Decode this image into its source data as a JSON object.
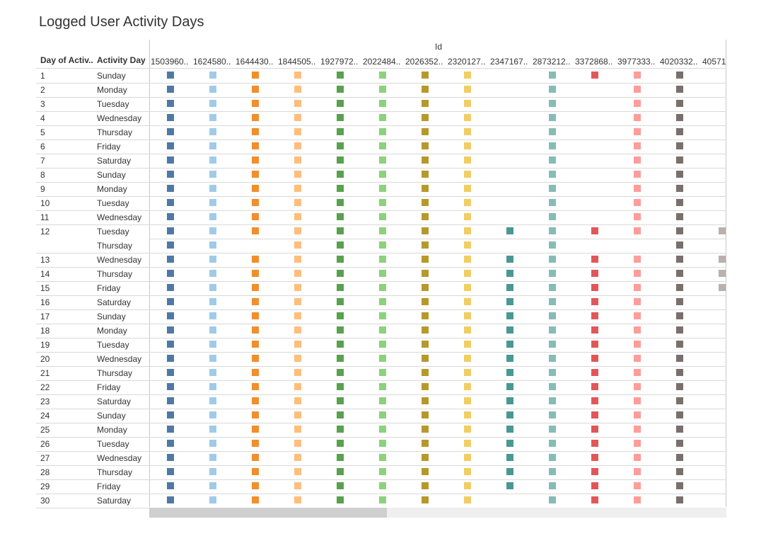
{
  "title": "Logged User Activity Days",
  "header": {
    "id_label": "Id",
    "col1": "Day of Activ..",
    "col2": "Activity Day"
  },
  "chart_data": {
    "type": "table",
    "title": "Logged User Activity Days",
    "column_group": "Id",
    "row_headers": [
      "Day of Activ..",
      "Activity Day"
    ],
    "ids": [
      "1503960..",
      "1624580..",
      "1644430..",
      "1844505..",
      "1927972..",
      "2022484..",
      "2026352..",
      "2320127..",
      "2347167..",
      "2873212..",
      "3372868..",
      "3977333..",
      "4020332..",
      "40571"
    ],
    "colors": [
      "#4e79a7",
      "#a0cbe8",
      "#f28e2b",
      "#ffbe7d",
      "#59a14f",
      "#8cd17d",
      "#b6992d",
      "#f1ce63",
      "#499894",
      "#86bcb6",
      "#e15759",
      "#ff9d9a",
      "#79706e",
      "#bab0ac"
    ],
    "rows": [
      {
        "day": "1",
        "activity": "Sunday",
        "present": [
          0,
          1,
          2,
          3,
          4,
          5,
          6,
          7,
          9,
          10,
          11,
          12
        ]
      },
      {
        "day": "2",
        "activity": "Monday",
        "present": [
          0,
          1,
          2,
          3,
          4,
          5,
          6,
          7,
          9,
          11,
          12
        ]
      },
      {
        "day": "3",
        "activity": "Tuesday",
        "present": [
          0,
          1,
          2,
          3,
          4,
          5,
          6,
          7,
          9,
          11,
          12
        ]
      },
      {
        "day": "4",
        "activity": "Wednesday",
        "present": [
          0,
          1,
          2,
          3,
          4,
          5,
          6,
          7,
          9,
          11,
          12
        ]
      },
      {
        "day": "5",
        "activity": "Thursday",
        "present": [
          0,
          1,
          2,
          3,
          4,
          5,
          6,
          7,
          9,
          11,
          12
        ]
      },
      {
        "day": "6",
        "activity": "Friday",
        "present": [
          0,
          1,
          2,
          3,
          4,
          5,
          6,
          7,
          9,
          11,
          12
        ]
      },
      {
        "day": "7",
        "activity": "Saturday",
        "present": [
          0,
          1,
          2,
          3,
          4,
          5,
          6,
          7,
          9,
          11,
          12
        ]
      },
      {
        "day": "8",
        "activity": "Sunday",
        "present": [
          0,
          1,
          2,
          3,
          4,
          5,
          6,
          7,
          9,
          11,
          12
        ]
      },
      {
        "day": "9",
        "activity": "Monday",
        "present": [
          0,
          1,
          2,
          3,
          4,
          5,
          6,
          7,
          9,
          11,
          12
        ]
      },
      {
        "day": "10",
        "activity": "Tuesday",
        "present": [
          0,
          1,
          2,
          3,
          4,
          5,
          6,
          7,
          9,
          11,
          12
        ]
      },
      {
        "day": "11",
        "activity": "Wednesday",
        "present": [
          0,
          1,
          2,
          3,
          4,
          5,
          6,
          7,
          9,
          11,
          12
        ]
      },
      {
        "day": "12",
        "activity": "Tuesday",
        "present": [
          0,
          1,
          2,
          3,
          4,
          5,
          6,
          7,
          8,
          9,
          10,
          11,
          12,
          13
        ]
      },
      {
        "day": "",
        "activity": "Thursday",
        "present": [
          0,
          1,
          3,
          4,
          5,
          6,
          7,
          9,
          12
        ]
      },
      {
        "day": "13",
        "activity": "Wednesday",
        "present": [
          0,
          1,
          2,
          3,
          4,
          5,
          6,
          7,
          8,
          9,
          10,
          11,
          12,
          13
        ]
      },
      {
        "day": "14",
        "activity": "Thursday",
        "present": [
          0,
          1,
          2,
          3,
          4,
          5,
          6,
          7,
          8,
          9,
          10,
          11,
          12,
          13
        ]
      },
      {
        "day": "15",
        "activity": "Friday",
        "present": [
          0,
          1,
          2,
          3,
          4,
          5,
          6,
          7,
          8,
          9,
          10,
          11,
          12,
          13
        ]
      },
      {
        "day": "16",
        "activity": "Saturday",
        "present": [
          0,
          1,
          2,
          3,
          4,
          5,
          6,
          7,
          8,
          9,
          10,
          11,
          12
        ]
      },
      {
        "day": "17",
        "activity": "Sunday",
        "present": [
          0,
          1,
          2,
          3,
          4,
          5,
          6,
          7,
          8,
          9,
          10,
          11,
          12
        ]
      },
      {
        "day": "18",
        "activity": "Monday",
        "present": [
          0,
          1,
          2,
          3,
          4,
          5,
          6,
          7,
          8,
          9,
          10,
          11,
          12
        ]
      },
      {
        "day": "19",
        "activity": "Tuesday",
        "present": [
          0,
          1,
          2,
          3,
          4,
          5,
          6,
          7,
          8,
          9,
          10,
          11,
          12
        ]
      },
      {
        "day": "20",
        "activity": "Wednesday",
        "present": [
          0,
          1,
          2,
          3,
          4,
          5,
          6,
          7,
          8,
          9,
          10,
          11,
          12
        ]
      },
      {
        "day": "21",
        "activity": "Thursday",
        "present": [
          0,
          1,
          2,
          3,
          4,
          5,
          6,
          7,
          8,
          9,
          10,
          11,
          12
        ]
      },
      {
        "day": "22",
        "activity": "Friday",
        "present": [
          0,
          1,
          2,
          3,
          4,
          5,
          6,
          7,
          8,
          9,
          10,
          11,
          12
        ]
      },
      {
        "day": "23",
        "activity": "Saturday",
        "present": [
          0,
          1,
          2,
          3,
          4,
          5,
          6,
          7,
          8,
          9,
          10,
          11,
          12
        ]
      },
      {
        "day": "24",
        "activity": "Sunday",
        "present": [
          0,
          1,
          2,
          3,
          4,
          5,
          6,
          7,
          8,
          9,
          10,
          11,
          12
        ]
      },
      {
        "day": "25",
        "activity": "Monday",
        "present": [
          0,
          1,
          2,
          3,
          4,
          5,
          6,
          7,
          8,
          9,
          10,
          11,
          12
        ]
      },
      {
        "day": "26",
        "activity": "Tuesday",
        "present": [
          0,
          1,
          2,
          3,
          4,
          5,
          6,
          7,
          8,
          9,
          10,
          11,
          12
        ]
      },
      {
        "day": "27",
        "activity": "Wednesday",
        "present": [
          0,
          1,
          2,
          3,
          4,
          5,
          6,
          7,
          8,
          9,
          10,
          11,
          12
        ]
      },
      {
        "day": "28",
        "activity": "Thursday",
        "present": [
          0,
          1,
          2,
          3,
          4,
          5,
          6,
          7,
          8,
          9,
          10,
          11,
          12
        ]
      },
      {
        "day": "29",
        "activity": "Friday",
        "present": [
          0,
          1,
          2,
          3,
          4,
          5,
          6,
          7,
          8,
          9,
          10,
          11,
          12
        ]
      },
      {
        "day": "30",
        "activity": "Saturday",
        "present": [
          0,
          1,
          2,
          3,
          4,
          5,
          6,
          7,
          9,
          10,
          11,
          12
        ]
      }
    ]
  }
}
